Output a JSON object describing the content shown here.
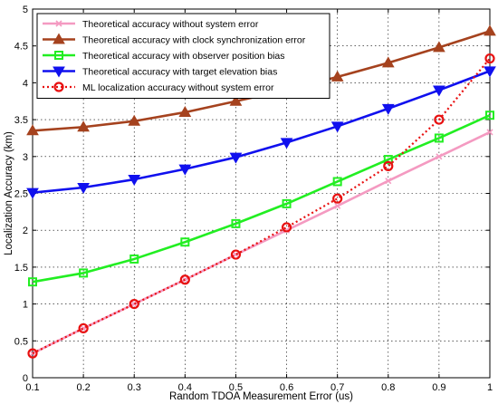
{
  "chart_data": {
    "type": "line",
    "xlabel": "Random TDOA Measurement Error (us)",
    "ylabel": "Localization Accuracy (km)",
    "xlim": [
      0.1,
      1
    ],
    "ylim": [
      0,
      5
    ],
    "xticks": [
      "0.1",
      "0.2",
      "0.3",
      "0.4",
      "0.5",
      "0.6",
      "0.7",
      "0.8",
      "0.9",
      "1"
    ],
    "yticks": [
      "0",
      "0.5",
      "1",
      "1.5",
      "2",
      "2.5",
      "3",
      "3.5",
      "4",
      "4.5",
      "5"
    ],
    "grid": true,
    "legend_position": "top-left",
    "x": [
      0.1,
      0.2,
      0.3,
      0.4,
      0.5,
      0.6,
      0.7,
      0.8,
      0.9,
      1.0
    ],
    "series": [
      {
        "name": "Theoretical accuracy without system error",
        "color": "#f49ac1",
        "marker": "x",
        "line": "solid",
        "values": [
          0.33,
          0.67,
          1.0,
          1.33,
          1.67,
          2.0,
          2.33,
          2.67,
          3.0,
          3.33
        ]
      },
      {
        "name": "Theoretical accuracy with clock synchronization error",
        "color": "#a5421e",
        "marker": "triangle-up",
        "line": "solid",
        "values": [
          3.35,
          3.4,
          3.48,
          3.6,
          3.75,
          3.9,
          4.08,
          4.27,
          4.48,
          4.7
        ]
      },
      {
        "name": "Theoretical accuracy with observer position bias",
        "color": "#22ee22",
        "marker": "square",
        "line": "solid",
        "values": [
          1.3,
          1.42,
          1.61,
          1.84,
          2.09,
          2.36,
          2.66,
          2.96,
          3.25,
          3.56
        ]
      },
      {
        "name": "Theoretical accuracy with target elevation bias",
        "color": "#1010ee",
        "marker": "triangle-down",
        "line": "solid",
        "values": [
          2.51,
          2.58,
          2.69,
          2.83,
          2.99,
          3.19,
          3.41,
          3.65,
          3.9,
          4.16
        ]
      },
      {
        "name": "ML localization accuracy without system error",
        "color": "#e81010",
        "marker": "circle",
        "line": "dotted",
        "values": [
          0.33,
          0.67,
          1.0,
          1.33,
          1.67,
          2.04,
          2.43,
          2.87,
          3.5,
          4.33
        ]
      }
    ]
  }
}
